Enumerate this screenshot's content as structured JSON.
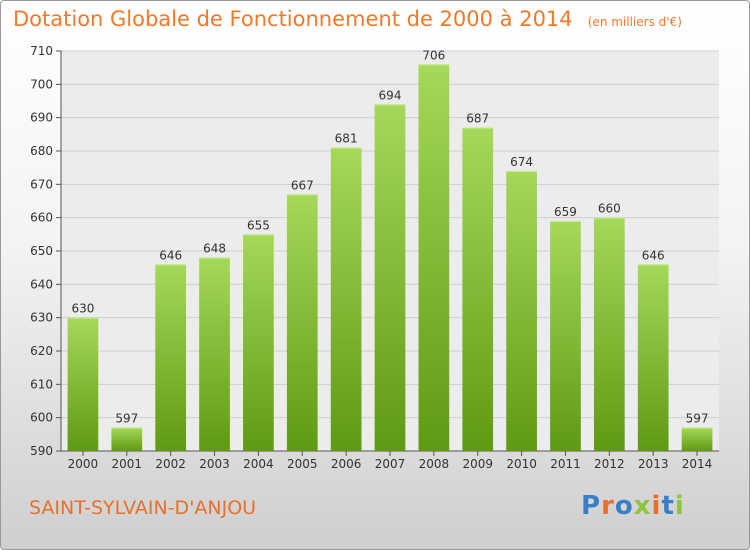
{
  "chart_data": {
    "type": "bar",
    "title": "Dotation Globale de Fonctionnement de 2000 à 2014",
    "subtitle": "(en milliers d'€)",
    "categories": [
      "2000",
      "2001",
      "2002",
      "2003",
      "2004",
      "2005",
      "2006",
      "2007",
      "2008",
      "2009",
      "2010",
      "2011",
      "2012",
      "2013",
      "2014"
    ],
    "values": [
      630,
      597,
      646,
      648,
      655,
      667,
      681,
      694,
      706,
      687,
      674,
      659,
      660,
      646,
      597
    ],
    "ylim": [
      590,
      710
    ],
    "yticks": [
      590,
      600,
      610,
      620,
      630,
      640,
      650,
      660,
      670,
      680,
      690,
      700,
      710
    ],
    "xlabel": "",
    "ylabel": "",
    "grid": true,
    "bar_color": "#7dbb2a"
  },
  "footer": {
    "commune": "SAINT-SYLVAIN-D'ANJOU",
    "logo_text": "Proxiti",
    "logo_colors": [
      "#3a7fc4",
      "#e8702a",
      "#3a7fc4",
      "#8cc63f",
      "#e8702a",
      "#3a7fc4",
      "#8cc63f"
    ]
  }
}
